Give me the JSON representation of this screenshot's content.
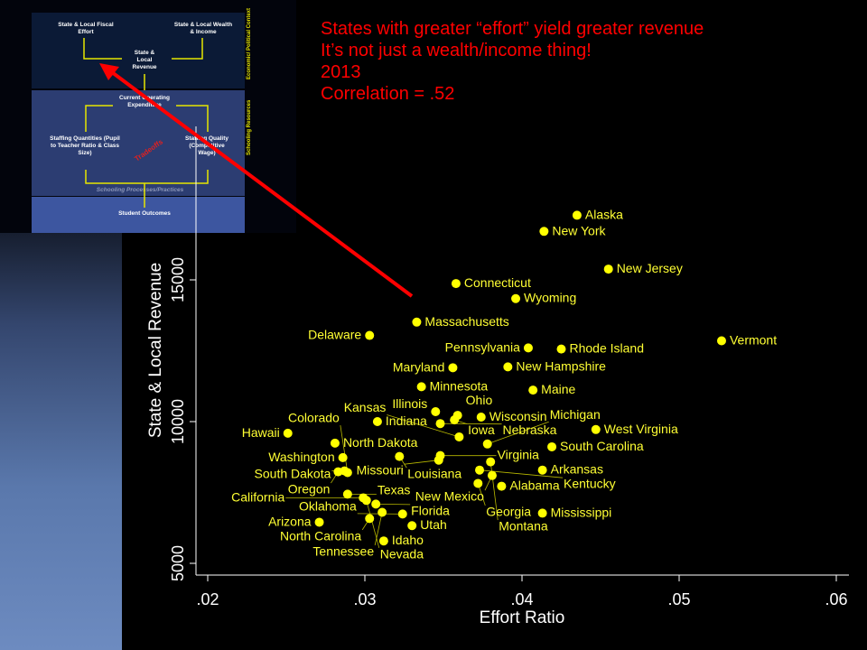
{
  "slide_title_lines": [
    "States with greater “effort” yield greater revenue",
    "It’s not just a wealth/income thing!",
    "2013",
    "Correlation = .52"
  ],
  "inset_diagram": {
    "fiscal_effort": "State & Local Fiscal Effort",
    "wealth_income": "State & Local Wealth & Income",
    "revenue": "State & Local Revenue",
    "expenditure": "Current Operating Expenditure",
    "staffing_quantities": "Staffing Quantities (Pupil to Teacher Ratio & Class Size)",
    "staffing_quality": "Staffing Quality (Competitive Wage)",
    "tradeoffs": "Tradeoffs",
    "processes": "Schooling Processes/Practices",
    "outcomes": "Student Outcomes",
    "side_economic": "Economic/ Political Context",
    "side_schooling": "Schooling Resources"
  },
  "colors": {
    "points": "#ffff00",
    "arrow": "#ff0000",
    "title": "#ff0000"
  },
  "chart_data": {
    "type": "scatter",
    "title": "",
    "xlabel": "Effort Ratio",
    "ylabel": "State & Local Revenue",
    "xlim": [
      0.0192,
      0.0605
    ],
    "ylim": [
      3900,
      19700
    ],
    "xticks": [
      0.02,
      0.03,
      0.04,
      0.05,
      0.06
    ],
    "xtick_labels": [
      ".02",
      ".03",
      ".04",
      ".05",
      ".06"
    ],
    "yticks": [
      5000,
      10000,
      15000
    ],
    "ytick_labels": [
      "5000",
      "10000",
      "15000"
    ],
    "grid": false,
    "points": [
      {
        "label": "Alaska",
        "x": 0.0435,
        "y": 17280
      },
      {
        "label": "New York",
        "x": 0.0414,
        "y": 16710
      },
      {
        "label": "New Jersey",
        "x": 0.0455,
        "y": 15380
      },
      {
        "label": "Connecticut",
        "x": 0.0358,
        "y": 14870
      },
      {
        "label": "Wyoming",
        "x": 0.0396,
        "y": 14340
      },
      {
        "label": "Massachusetts",
        "x": 0.0333,
        "y": 13510
      },
      {
        "label": "Delaware",
        "x": 0.0303,
        "y": 13040
      },
      {
        "label": "Vermont",
        "x": 0.0527,
        "y": 12850
      },
      {
        "label": "Pennsylvania",
        "x": 0.0404,
        "y": 12600
      },
      {
        "label": "Rhode Island",
        "x": 0.0425,
        "y": 12560
      },
      {
        "label": "Maryland",
        "x": 0.0356,
        "y": 11900
      },
      {
        "label": "New Hampshire",
        "x": 0.0391,
        "y": 11930
      },
      {
        "label": "Minnesota",
        "x": 0.0336,
        "y": 11230
      },
      {
        "label": "Maine",
        "x": 0.0407,
        "y": 11110
      },
      {
        "label": "Illinois",
        "x": 0.0345,
        "y": 10350
      },
      {
        "label": "Ohio",
        "x": 0.0359,
        "y": 10220
      },
      {
        "label": "Iowa",
        "x": 0.0357,
        "y": 10060
      },
      {
        "label": "Wisconsin",
        "x": 0.0374,
        "y": 10160
      },
      {
        "label": "Nebraska",
        "x": 0.0348,
        "y": 9930
      },
      {
        "label": "Indiana",
        "x": 0.0308,
        "y": 10000
      },
      {
        "label": "West Virginia",
        "x": 0.0447,
        "y": 9720
      },
      {
        "label": "Hawaii",
        "x": 0.0251,
        "y": 9590
      },
      {
        "label": "Kansas",
        "x": 0.036,
        "y": 9460
      },
      {
        "label": "North Dakota",
        "x": 0.0281,
        "y": 9240
      },
      {
        "label": "Michigan",
        "x": 0.0378,
        "y": 9210
      },
      {
        "label": "South Carolina",
        "x": 0.0419,
        "y": 9110
      },
      {
        "label": "Washington",
        "x": 0.0286,
        "y": 8730
      },
      {
        "label": "Louisiana",
        "x": 0.0322,
        "y": 8770
      },
      {
        "label": "Virginia",
        "x": 0.0348,
        "y": 8800
      },
      {
        "label": "Missouri",
        "x": 0.0347,
        "y": 8640
      },
      {
        "label": "Montana",
        "x": 0.038,
        "y": 8580
      },
      {
        "label": "Oregon",
        "x": 0.0283,
        "y": 8230
      },
      {
        "label": "South Dakota",
        "x": 0.0287,
        "y": 8260
      },
      {
        "label": "Colorado",
        "x": 0.0289,
        "y": 8200
      },
      {
        "label": "Kentucky",
        "x": 0.0373,
        "y": 8290
      },
      {
        "label": "Arkansas",
        "x": 0.0413,
        "y": 8290
      },
      {
        "label": "New Mexico",
        "x": 0.0381,
        "y": 8100
      },
      {
        "label": "Georgia",
        "x": 0.0372,
        "y": 7820
      },
      {
        "label": "Alabama",
        "x": 0.0387,
        "y": 7720
      },
      {
        "label": "Texas",
        "x": 0.0289,
        "y": 7440
      },
      {
        "label": "California",
        "x": 0.0299,
        "y": 7310
      },
      {
        "label": "Nevada",
        "x": 0.0301,
        "y": 7220
      },
      {
        "label": "Florida",
        "x": 0.0307,
        "y": 7090
      },
      {
        "label": "Tennessee",
        "x": 0.0311,
        "y": 6800
      },
      {
        "label": "Oklahoma",
        "x": 0.0324,
        "y": 6740
      },
      {
        "label": "Mississippi",
        "x": 0.0413,
        "y": 6770
      },
      {
        "label": "North Carolina",
        "x": 0.0303,
        "y": 6580
      },
      {
        "label": "Arizona",
        "x": 0.0271,
        "y": 6450
      },
      {
        "label": "Utah",
        "x": 0.033,
        "y": 6330
      },
      {
        "label": "Idaho",
        "x": 0.0312,
        "y": 5790
      }
    ]
  }
}
